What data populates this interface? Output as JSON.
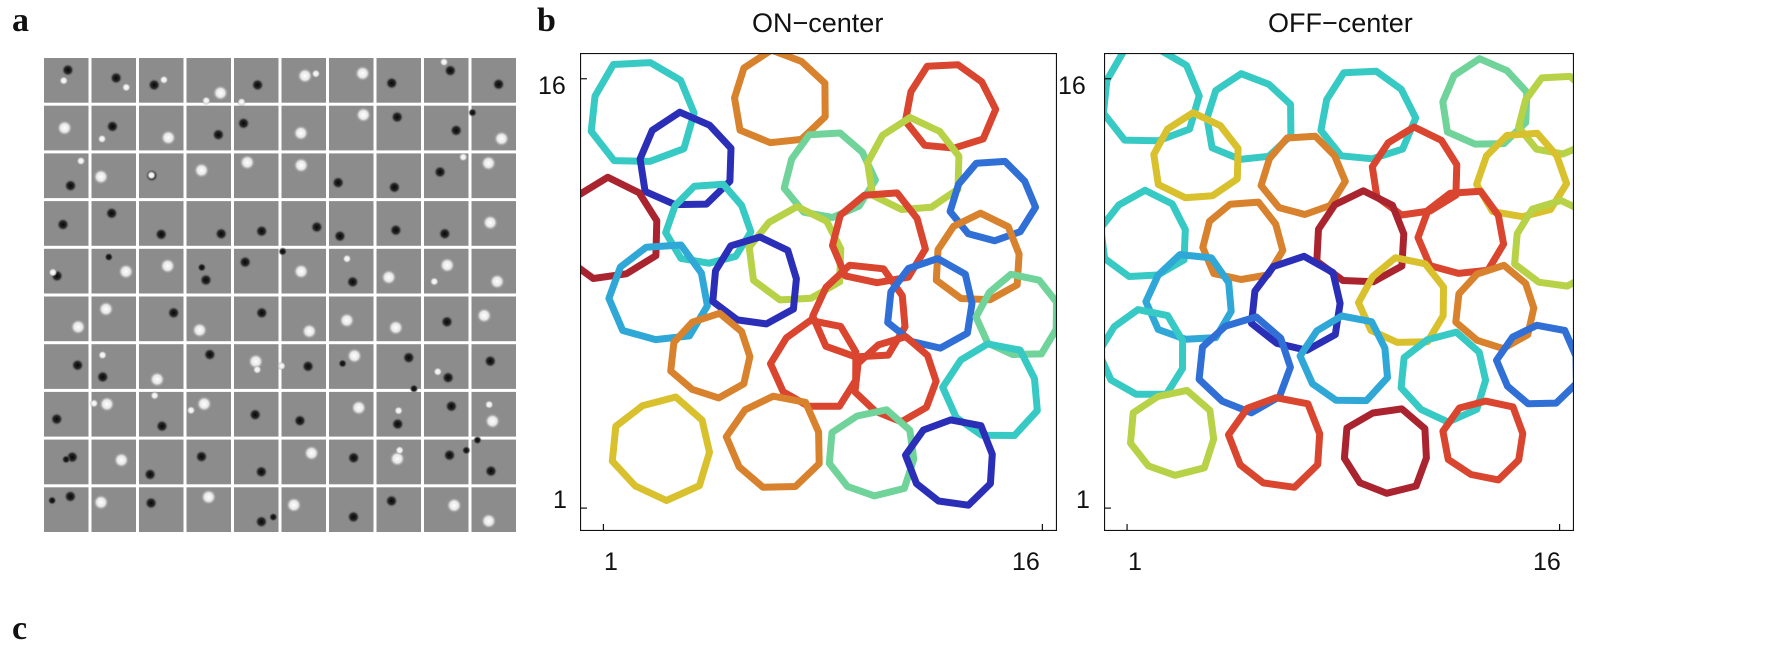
{
  "figure": {
    "panel_labels": {
      "a": "a",
      "b": "b",
      "c": "c"
    }
  },
  "panel_a": {
    "grid_rows": 10,
    "grid_cols": 10,
    "tile_background": "#8c8c8c",
    "separator_color": "#ffffff"
  },
  "panel_b": {
    "plots": [
      {
        "title": "ON−center",
        "x_ticks": [
          "1",
          "16"
        ],
        "y_ticks": [
          "16",
          "1"
        ],
        "y_tick_side": "left",
        "xlim": [
          0.2,
          16.5
        ],
        "ylim": [
          0.2,
          16.9
        ]
      },
      {
        "title": "OFF−center",
        "x_ticks": [
          "1",
          "16"
        ],
        "y_ticks": [
          "16",
          "1"
        ],
        "y_tick_side": "left",
        "xlim": [
          0.2,
          16.5
        ],
        "ylim": [
          0.2,
          16.9
        ]
      }
    ],
    "colormap": [
      "#2b2fb8",
      "#2f6fd6",
      "#2fa8d8",
      "#37c9c4",
      "#6fd39a",
      "#b7d246",
      "#d9c12e",
      "#d9822e",
      "#d9452e",
      "#a9242e"
    ]
  },
  "chart_data": {
    "type": "scatter",
    "title": "",
    "series": [
      {
        "name": "ON−center",
        "x": [
          2.3,
          7.0,
          12.8,
          3.8,
          8.7,
          11.6,
          14.3,
          1.2,
          4.6,
          7.6,
          10.4,
          13.8,
          2.9,
          6.2,
          9.8,
          12.2,
          15.2,
          4.7,
          8.3,
          11.0,
          14.3,
          3.0,
          6.9,
          10.2,
          12.9
        ],
        "y": [
          14.8,
          15.3,
          15.0,
          13.1,
          12.6,
          12.9,
          11.7,
          10.7,
          10.9,
          9.8,
          10.4,
          9.7,
          8.5,
          8.9,
          7.8,
          8.1,
          7.7,
          6.3,
          6.0,
          5.5,
          5.1,
          3.1,
          3.3,
          2.9,
          2.6
        ],
        "r": [
          1.8,
          1.6,
          1.5,
          1.6,
          1.5,
          1.6,
          1.4,
          1.7,
          1.4,
          1.6,
          1.6,
          1.5,
          1.7,
          1.5,
          1.6,
          1.5,
          1.4,
          1.4,
          1.5,
          1.4,
          1.6,
          1.7,
          1.6,
          1.5,
          1.5
        ],
        "c": [
          3,
          7,
          8,
          0,
          4,
          5,
          1,
          9,
          3,
          5,
          8,
          7,
          2,
          0,
          8,
          1,
          4,
          7,
          8,
          8,
          3,
          6,
          7,
          4,
          0
        ]
      },
      {
        "name": "OFF−center",
        "x": [
          1.8,
          5.2,
          9.3,
          13.4,
          16.0,
          3.4,
          7.1,
          11.0,
          14.7,
          1.6,
          5.0,
          9.1,
          12.6,
          15.9,
          3.2,
          6.9,
          10.6,
          13.8,
          1.6,
          5.1,
          8.6,
          12.0,
          15.3,
          2.6,
          6.2,
          10.0,
          13.4
        ],
        "y": [
          15.4,
          14.6,
          14.7,
          15.1,
          14.7,
          13.2,
          12.6,
          12.7,
          12.6,
          10.5,
          10.3,
          10.4,
          10.6,
          10.2,
          8.3,
          8.1,
          8.2,
          8.0,
          6.4,
          6.0,
          6.2,
          5.6,
          6.0,
          3.6,
          3.3,
          3.0,
          3.4
        ],
        "r": [
          1.7,
          1.5,
          1.6,
          1.5,
          1.4,
          1.5,
          1.4,
          1.5,
          1.5,
          1.5,
          1.4,
          1.6,
          1.5,
          1.5,
          1.5,
          1.6,
          1.5,
          1.4,
          1.5,
          1.6,
          1.5,
          1.5,
          1.4,
          1.5,
          1.6,
          1.5,
          1.4
        ],
        "c": [
          3,
          3,
          3,
          4,
          5,
          6,
          7,
          8,
          6,
          3,
          7,
          9,
          8,
          5,
          2,
          0,
          6,
          7,
          3,
          1,
          2,
          3,
          1,
          5,
          8,
          9,
          8
        ]
      }
    ],
    "xlabel": "",
    "ylabel": "",
    "xlim": [
      0.2,
      16.5
    ],
    "ylim": [
      0.2,
      16.9
    ],
    "grid": false,
    "legend": "none"
  }
}
